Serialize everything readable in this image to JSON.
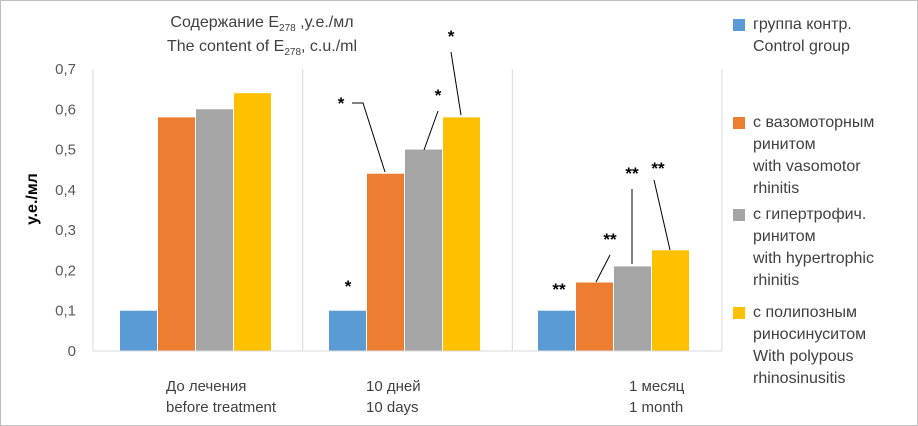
{
  "chart_data": {
    "type": "bar",
    "title_ru": "Содержание E",
    "title_ru_sub": "278",
    "title_ru_suffix": " ,у.е./мл",
    "title_en": "The content of E",
    "title_en_sub": "278",
    "title_en_suffix": ", c.u./ml",
    "ylabel": "у.е./мл",
    "ylim": [
      0,
      0.7
    ],
    "yticks": [
      "0",
      "0,1",
      "0,2",
      "0,3",
      "0,4",
      "0,5",
      "0,6",
      "0,7"
    ],
    "categories": [
      {
        "ru": "До лечения",
        "en": "before treatment"
      },
      {
        "ru": "10 дней",
        "en": "10 days"
      },
      {
        "ru": "1 месяц",
        "en": "1 month"
      }
    ],
    "series": [
      {
        "name_ru": "группа контр.",
        "name_en": "Control group",
        "color": "#5B9BD5",
        "values": [
          0.1,
          0.1,
          0.1
        ],
        "marks": [
          "",
          "*",
          "**"
        ]
      },
      {
        "name_ru": "с вазомоторным ринитом",
        "name_en": "with vasomotor rhinitis",
        "color": "#ED7D31",
        "values": [
          0.58,
          0.44,
          0.17
        ],
        "marks": [
          "",
          "*",
          "**"
        ]
      },
      {
        "name_ru": "с гипертрофич. ринитом",
        "name_en": "with hypertrophic rhinitis",
        "color": "#A5A5A5",
        "values": [
          0.6,
          0.5,
          0.21
        ],
        "marks": [
          "",
          "*",
          "**"
        ]
      },
      {
        "name_ru": "с полипозным риносинуситом",
        "name_en": "With polypous rhinosinusitis",
        "color": "#FFC000",
        "values": [
          0.64,
          0.58,
          0.25
        ],
        "marks": [
          "",
          "*",
          "**"
        ]
      }
    ],
    "grid": false
  },
  "legend_lines": [
    [
      "группа контр.",
      "Control group"
    ],
    [
      "с вазомоторным",
      "ринитом",
      "with vasomotor",
      "rhinitis"
    ],
    [
      "с гипертрофич.",
      "ринитом",
      "with hypertrophic",
      "rhinitis"
    ],
    [
      "с полипозным",
      "риносинуситом",
      "With polypous",
      "rhinosinusitis"
    ]
  ]
}
